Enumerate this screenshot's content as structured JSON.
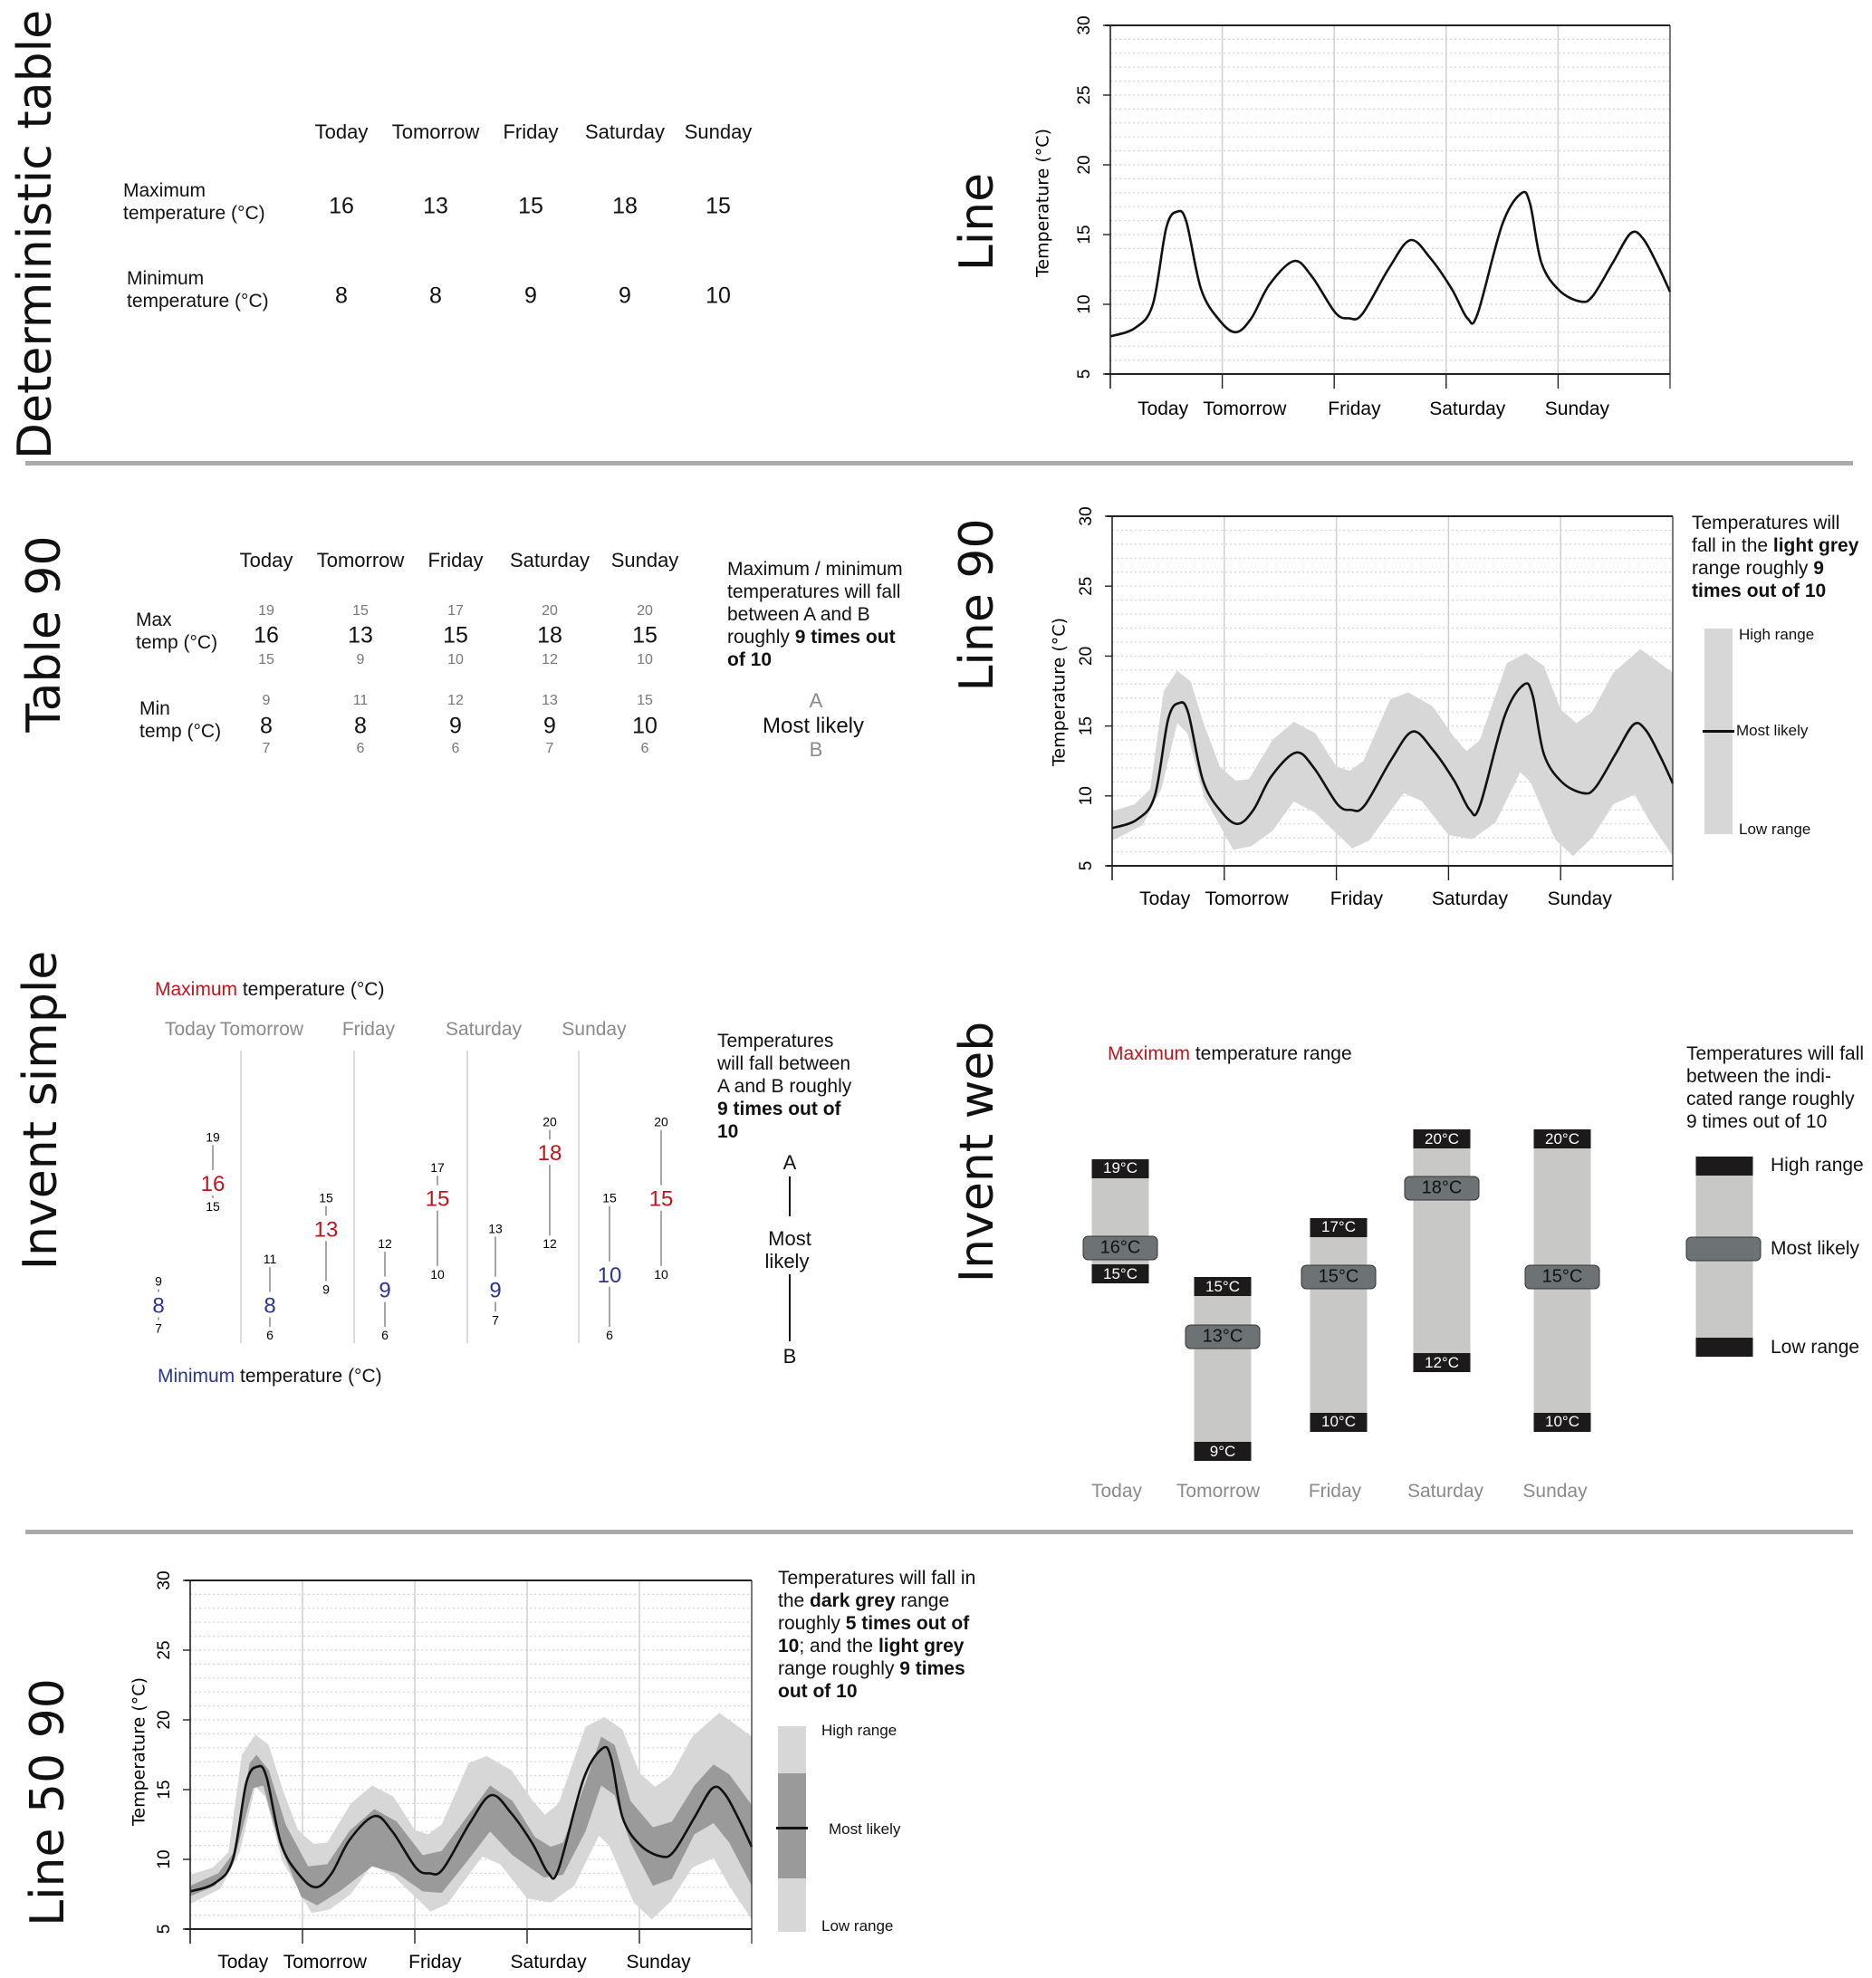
{
  "days": [
    "Today",
    "Tomorrow",
    "Friday",
    "Saturday",
    "Sunday"
  ],
  "section_labels": {
    "deterministic_table": "Deterministic table",
    "line": "Line",
    "table_90": "Table 90",
    "line_90": "Line 90",
    "invent_simple": "Invent simple",
    "invent_web": "Invent web",
    "line_50_90": "Line 50 90"
  },
  "deterministic_table": {
    "max_label": [
      "Maximum",
      "temperature (°C)"
    ],
    "min_label": [
      "Minimum",
      "temperature (°C)"
    ],
    "max": [
      "16",
      "13",
      "15",
      "18",
      "15"
    ],
    "min": [
      "8",
      "8",
      "9",
      "9",
      "10"
    ]
  },
  "table_90": {
    "max_label": [
      "Max",
      "temp (°C)"
    ],
    "min_label": [
      "Min",
      "temp (°C)"
    ],
    "max_high": [
      "19",
      "15",
      "17",
      "20",
      "20"
    ],
    "max": [
      "16",
      "13",
      "15",
      "18",
      "15"
    ],
    "max_low": [
      "15",
      "9",
      "10",
      "12",
      "10"
    ],
    "min_high": [
      "9",
      "11",
      "12",
      "13",
      "15"
    ],
    "min": [
      "8",
      "8",
      "9",
      "9",
      "10"
    ],
    "min_low": [
      "7",
      "6",
      "6",
      "7",
      "6"
    ],
    "explanation": [
      "Maximum / minimum",
      "temperatures will fall",
      "between A and B",
      "roughly ",
      "9 times out",
      "of 10"
    ],
    "key": {
      "a": "A",
      "most_likely": "Most likely",
      "b": "B"
    }
  },
  "invent_simple": {
    "max_title_colored": "Maximum",
    "max_title_rest": " temperature (°C)",
    "min_title_colored": "Minimum",
    "min_title_rest": " temperature (°C)",
    "max": {
      "high": [
        19,
        15,
        17,
        20,
        20
      ],
      "value": [
        16,
        13,
        15,
        18,
        15
      ],
      "low": [
        15,
        9,
        10,
        12,
        10
      ]
    },
    "min": {
      "high": [
        9,
        11,
        12,
        13,
        15
      ],
      "value": [
        8,
        8,
        9,
        9,
        10
      ],
      "low": [
        7,
        6,
        6,
        7,
        6
      ]
    },
    "explanation": [
      "Temperatures",
      "will fall between",
      "A and B roughly",
      "9 times out of",
      "10"
    ],
    "key": {
      "a": "A",
      "most_likely": [
        "Most",
        "likely"
      ],
      "b": "B"
    },
    "colors": {
      "max": "#c0141c",
      "min": "#2a3590"
    }
  },
  "invent_web": {
    "title_colored": "Maximum",
    "title_rest": " temperature range",
    "high": [
      19,
      15,
      17,
      20,
      20
    ],
    "value": [
      16,
      13,
      15,
      18,
      15
    ],
    "low": [
      15,
      9,
      10,
      12,
      10
    ],
    "unit": "°C",
    "explanation": [
      "Temperatures will fall",
      "between the indi-",
      "cated range roughly",
      "9 times out of 10"
    ],
    "legend": {
      "high": "High range",
      "most_likely": "Most likely",
      "low": "Low range"
    }
  },
  "chart_data": [
    {
      "id": "line",
      "type": "line",
      "ylabel": "Temperature (°C)",
      "ylim": [
        5,
        30
      ],
      "yticks": [
        "5",
        "10",
        "15",
        "20",
        "25",
        "30"
      ],
      "categories": [
        "Today",
        "Tomorrow",
        "Friday",
        "Saturday",
        "Sunday"
      ],
      "grid": true,
      "series": [
        {
          "role": "most_likely",
          "color": "#111111",
          "points": [
            [
              0,
              7.7
            ],
            [
              0.22,
              8.3
            ],
            [
              0.38,
              10.0
            ],
            [
              0.5,
              15.5
            ],
            [
              0.6,
              16.65
            ],
            [
              0.68,
              15.9
            ],
            [
              0.81,
              11.1
            ],
            [
              0.97,
              8.9
            ],
            [
              1.12,
              8.0
            ],
            [
              1.26,
              9.0
            ],
            [
              1.42,
              11.4
            ],
            [
              1.64,
              13.1
            ],
            [
              1.8,
              12.0
            ],
            [
              2.01,
              9.4
            ],
            [
              2.13,
              9.0
            ],
            [
              2.25,
              9.3
            ],
            [
              2.49,
              12.6
            ],
            [
              2.68,
              14.6
            ],
            [
              2.86,
              13.3
            ],
            [
              3.05,
              11.1
            ],
            [
              3.19,
              9.0
            ],
            [
              3.28,
              9.3
            ],
            [
              3.5,
              15.7
            ],
            [
              3.67,
              17.95
            ],
            [
              3.75,
              17.2
            ],
            [
              3.85,
              13.0
            ],
            [
              4.01,
              11.0
            ],
            [
              4.2,
              10.2
            ],
            [
              4.31,
              10.6
            ],
            [
              4.49,
              13.0
            ],
            [
              4.65,
              15.1
            ],
            [
              4.76,
              14.7
            ],
            [
              4.89,
              12.8
            ],
            [
              5.0,
              10.9
            ]
          ]
        }
      ]
    },
    {
      "id": "line90",
      "type": "area",
      "ylabel": "Temperature (°C)",
      "ylim": [
        5,
        30
      ],
      "yticks": [
        "5",
        "10",
        "15",
        "20",
        "25",
        "30"
      ],
      "categories": [
        "Today",
        "Tomorrow",
        "Friday",
        "Saturday",
        "Sunday"
      ],
      "grid": true,
      "bands": [
        {
          "role": "90",
          "color": "#d6d7d6",
          "upper": [
            [
              0,
              8.9
            ],
            [
              0.2,
              9.4
            ],
            [
              0.34,
              10.5
            ],
            [
              0.46,
              17.5
            ],
            [
              0.58,
              18.95
            ],
            [
              0.7,
              18.2
            ],
            [
              0.82,
              15.1
            ],
            [
              0.96,
              12.1
            ],
            [
              1.1,
              11.1
            ],
            [
              1.22,
              11.2
            ],
            [
              1.43,
              14.0
            ],
            [
              1.62,
              15.3
            ],
            [
              1.81,
              14.5
            ],
            [
              2.0,
              12.1
            ],
            [
              2.12,
              11.8
            ],
            [
              2.24,
              12.5
            ],
            [
              2.48,
              16.9
            ],
            [
              2.64,
              17.4
            ],
            [
              2.86,
              16.4
            ],
            [
              3.05,
              14.2
            ],
            [
              3.16,
              13.2
            ],
            [
              3.28,
              14.0
            ],
            [
              3.52,
              19.5
            ],
            [
              3.69,
              20.2
            ],
            [
              3.85,
              19.3
            ],
            [
              4.0,
              16.2
            ],
            [
              4.14,
              15.2
            ],
            [
              4.28,
              16.0
            ],
            [
              4.47,
              18.8
            ],
            [
              4.71,
              20.5
            ],
            [
              4.85,
              19.7
            ],
            [
              5.0,
              18.8
            ]
          ],
          "lower": [
            [
              0,
              6.8
            ],
            [
              0.27,
              7.9
            ],
            [
              0.44,
              10.5
            ],
            [
              0.58,
              15.2
            ],
            [
              0.67,
              14.5
            ],
            [
              0.82,
              9.9
            ],
            [
              1.08,
              6.15
            ],
            [
              1.24,
              6.4
            ],
            [
              1.43,
              7.5
            ],
            [
              1.62,
              9.6
            ],
            [
              1.81,
              8.8
            ],
            [
              2.14,
              6.25
            ],
            [
              2.29,
              6.8
            ],
            [
              2.6,
              10.2
            ],
            [
              2.76,
              9.65
            ],
            [
              3.0,
              7.2
            ],
            [
              3.21,
              6.9
            ],
            [
              3.42,
              8.1
            ],
            [
              3.64,
              11.7
            ],
            [
              3.73,
              11.0
            ],
            [
              3.95,
              6.9
            ],
            [
              4.11,
              5.7
            ],
            [
              4.28,
              7.0
            ],
            [
              4.47,
              9.4
            ],
            [
              4.66,
              10.1
            ],
            [
              4.8,
              8.1
            ],
            [
              5.0,
              5.7
            ]
          ]
        }
      ],
      "series": [
        {
          "role": "most_likely",
          "color": "#111111",
          "ref": "line"
        }
      ],
      "legend": {
        "text": [
          "Temperatures will",
          "fall in the ",
          "light grey",
          "range roughly ",
          "9",
          "times out of 10"
        ],
        "high": "High range",
        "most_likely": "Most likely",
        "low": "Low range",
        "position": "right"
      }
    },
    {
      "id": "line5090",
      "type": "area",
      "ylabel": "Temperature (°C)",
      "ylim": [
        5,
        30
      ],
      "yticks": [
        "5",
        "10",
        "15",
        "20",
        "25",
        "30"
      ],
      "categories": [
        "Today",
        "Tomorrow",
        "Friday",
        "Saturday",
        "Sunday"
      ],
      "grid": true,
      "bands": [
        {
          "role": "90",
          "color": "#d6d7d6",
          "ref": "line90"
        },
        {
          "role": "50",
          "color": "#9a9a9a",
          "upper": [
            [
              0,
              8.1
            ],
            [
              0.25,
              9.0
            ],
            [
              0.39,
              10.5
            ],
            [
              0.53,
              16.9
            ],
            [
              0.59,
              17.5
            ],
            [
              0.7,
              16.4
            ],
            [
              0.85,
              12.5
            ],
            [
              1.05,
              9.5
            ],
            [
              1.22,
              9.65
            ],
            [
              1.42,
              12.05
            ],
            [
              1.64,
              13.6
            ],
            [
              1.84,
              12.7
            ],
            [
              2.07,
              10.3
            ],
            [
              2.24,
              10.6
            ],
            [
              2.47,
              13.1
            ],
            [
              2.67,
              15.3
            ],
            [
              2.87,
              14.2
            ],
            [
              3.07,
              11.6
            ],
            [
              3.21,
              10.9
            ],
            [
              3.32,
              11.2
            ],
            [
              3.52,
              15.5
            ],
            [
              3.66,
              18.8
            ],
            [
              3.78,
              18.2
            ],
            [
              3.92,
              14.2
            ],
            [
              4.12,
              12.3
            ],
            [
              4.29,
              12.7
            ],
            [
              4.49,
              15.3
            ],
            [
              4.66,
              16.8
            ],
            [
              4.8,
              16.1
            ],
            [
              5.0,
              13.9
            ]
          ],
          "lower": [
            [
              0,
              7.35
            ],
            [
              0.22,
              8.1
            ],
            [
              0.39,
              9.9
            ],
            [
              0.56,
              15.1
            ],
            [
              0.65,
              15.3
            ],
            [
              0.79,
              11.2
            ],
            [
              0.99,
              7.3
            ],
            [
              1.13,
              6.7
            ],
            [
              1.33,
              7.7
            ],
            [
              1.62,
              9.5
            ],
            [
              1.84,
              9.0
            ],
            [
              2.07,
              7.7
            ],
            [
              2.24,
              7.6
            ],
            [
              2.47,
              9.9
            ],
            [
              2.67,
              12.0
            ],
            [
              2.87,
              10.3
            ],
            [
              3.15,
              8.7
            ],
            [
              3.32,
              8.9
            ],
            [
              3.52,
              12.0
            ],
            [
              3.66,
              15.3
            ],
            [
              3.78,
              14.6
            ],
            [
              3.92,
              11.2
            ],
            [
              4.12,
              8.1
            ],
            [
              4.29,
              8.6
            ],
            [
              4.49,
              11.8
            ],
            [
              4.66,
              12.6
            ],
            [
              4.8,
              11.2
            ],
            [
              5.0,
              8.1
            ]
          ]
        }
      ],
      "series": [
        {
          "role": "most_likely",
          "color": "#111111",
          "ref": "line"
        }
      ],
      "legend": {
        "text": [
          "Temperatures will fall in",
          "the ",
          "dark grey",
          " range",
          "roughly ",
          "5 times out of",
          "10",
          "; and the ",
          "light grey",
          "range roughly ",
          "9 times",
          "out of 10"
        ],
        "high": "High range",
        "most_likely": "Most likely",
        "low": "Low range",
        "position": "right"
      }
    }
  ]
}
